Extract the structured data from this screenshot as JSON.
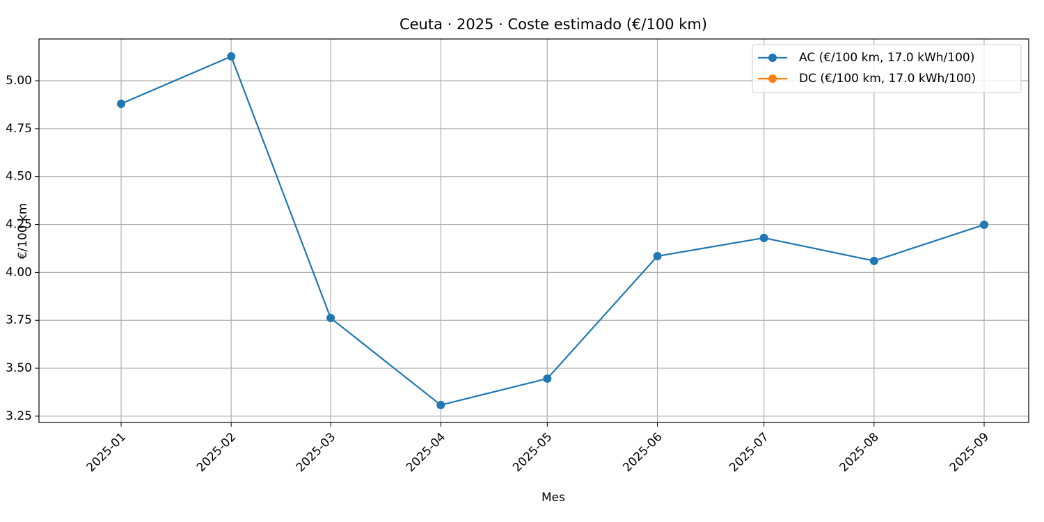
{
  "chart_data": {
    "type": "line",
    "title": "Ceuta · 2025 · Coste estimado (€/100 km)",
    "x_label": "Mes",
    "y_label": "€/100 km",
    "x": [
      "2025-01",
      "2025-02",
      "2025-03",
      "2025-04",
      "2025-05",
      "2025-06",
      "2025-07",
      "2025-08",
      "2025-09"
    ],
    "series": [
      {
        "name": "AC (€/100 km, 17.0 kWh/100)",
        "color": "#1f77b4",
        "values": [
          4.88,
          5.127,
          3.762,
          3.308,
          3.446,
          4.085,
          4.18,
          4.06,
          4.249
        ]
      },
      {
        "name": "DC (€/100 km, 17.0 kWh/100)",
        "color": "#ff7f0e",
        "values": [
          null,
          null,
          null,
          null,
          null,
          null,
          null,
          null,
          null
        ]
      }
    ],
    "ylim": [
      3.217,
      5.218
    ],
    "yticks": [
      {
        "value": 3.25,
        "label": "3.25"
      },
      {
        "value": 3.5,
        "label": "3.50"
      },
      {
        "value": 3.75,
        "label": "3.75"
      },
      {
        "value": 4,
        "label": "4.00"
      },
      {
        "value": 4.25,
        "label": "4.25"
      },
      {
        "value": 4.5,
        "label": "4.50"
      },
      {
        "value": 4.75,
        "label": "4.75"
      },
      {
        "value": 5,
        "label": "5.00"
      }
    ],
    "grid": true,
    "legend": "upper right"
  }
}
